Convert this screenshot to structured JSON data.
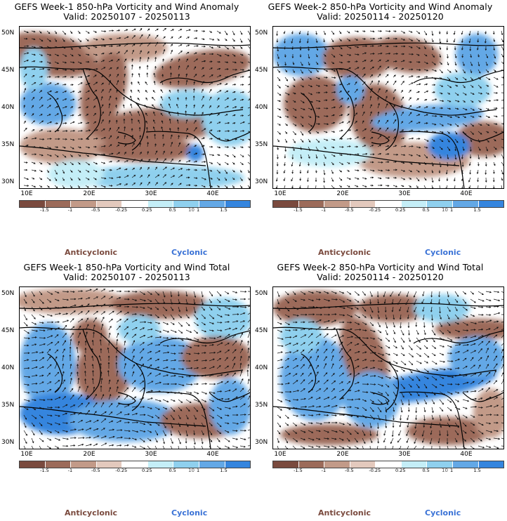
{
  "colors": {
    "strong_anticyclonic": "#7a4a3e",
    "anticyclonic": "#9c6b5a",
    "weak_anticyclonic": "#c29a88",
    "very_weak_anticyclonic": "#e3c9bd",
    "neutral": "#ffffff",
    "very_weak_cyclonic": "#c4eef7",
    "weak_cyclonic": "#8fd0ee",
    "cyclonic": "#63a8e6",
    "strong_cyclonic": "#3585de",
    "anticyclonic_label": "#7a4a3e",
    "cyclonic_label": "#3a72d6"
  },
  "axes": {
    "lat_ticks": [
      "50N",
      "45N",
      "40N",
      "35N",
      "30N"
    ],
    "lon_ticks": [
      "10E",
      "20E",
      "30E",
      "40E"
    ]
  },
  "colorbar": {
    "labels": [
      "-1.5",
      "-1",
      "-0.5",
      "-0.25",
      "0.25",
      "0.5",
      "1",
      "1.5"
    ],
    "scale_text": "10"
  },
  "legend": {
    "anticyclonic": "Anticyclonic",
    "cyclonic": "Cyclonic"
  },
  "panels": [
    {
      "title": "GEFS Week-1 850-hPa Vorticity and Wind Anomaly",
      "valid": "Valid: 20250107 - 20250113"
    },
    {
      "title": "GEFS Week-2 850-hPa Vorticity and Wind Anomaly",
      "valid": "Valid: 20250114 - 20250120"
    },
    {
      "title": "GEFS Week-1 850-hPa Vorticity and Wind Total",
      "valid": "Valid: 20250107 - 20250113"
    },
    {
      "title": "GEFS Week-2 850-hPa Vorticity and Wind Total",
      "valid": "Valid: 20250114 - 20250120"
    }
  ]
}
